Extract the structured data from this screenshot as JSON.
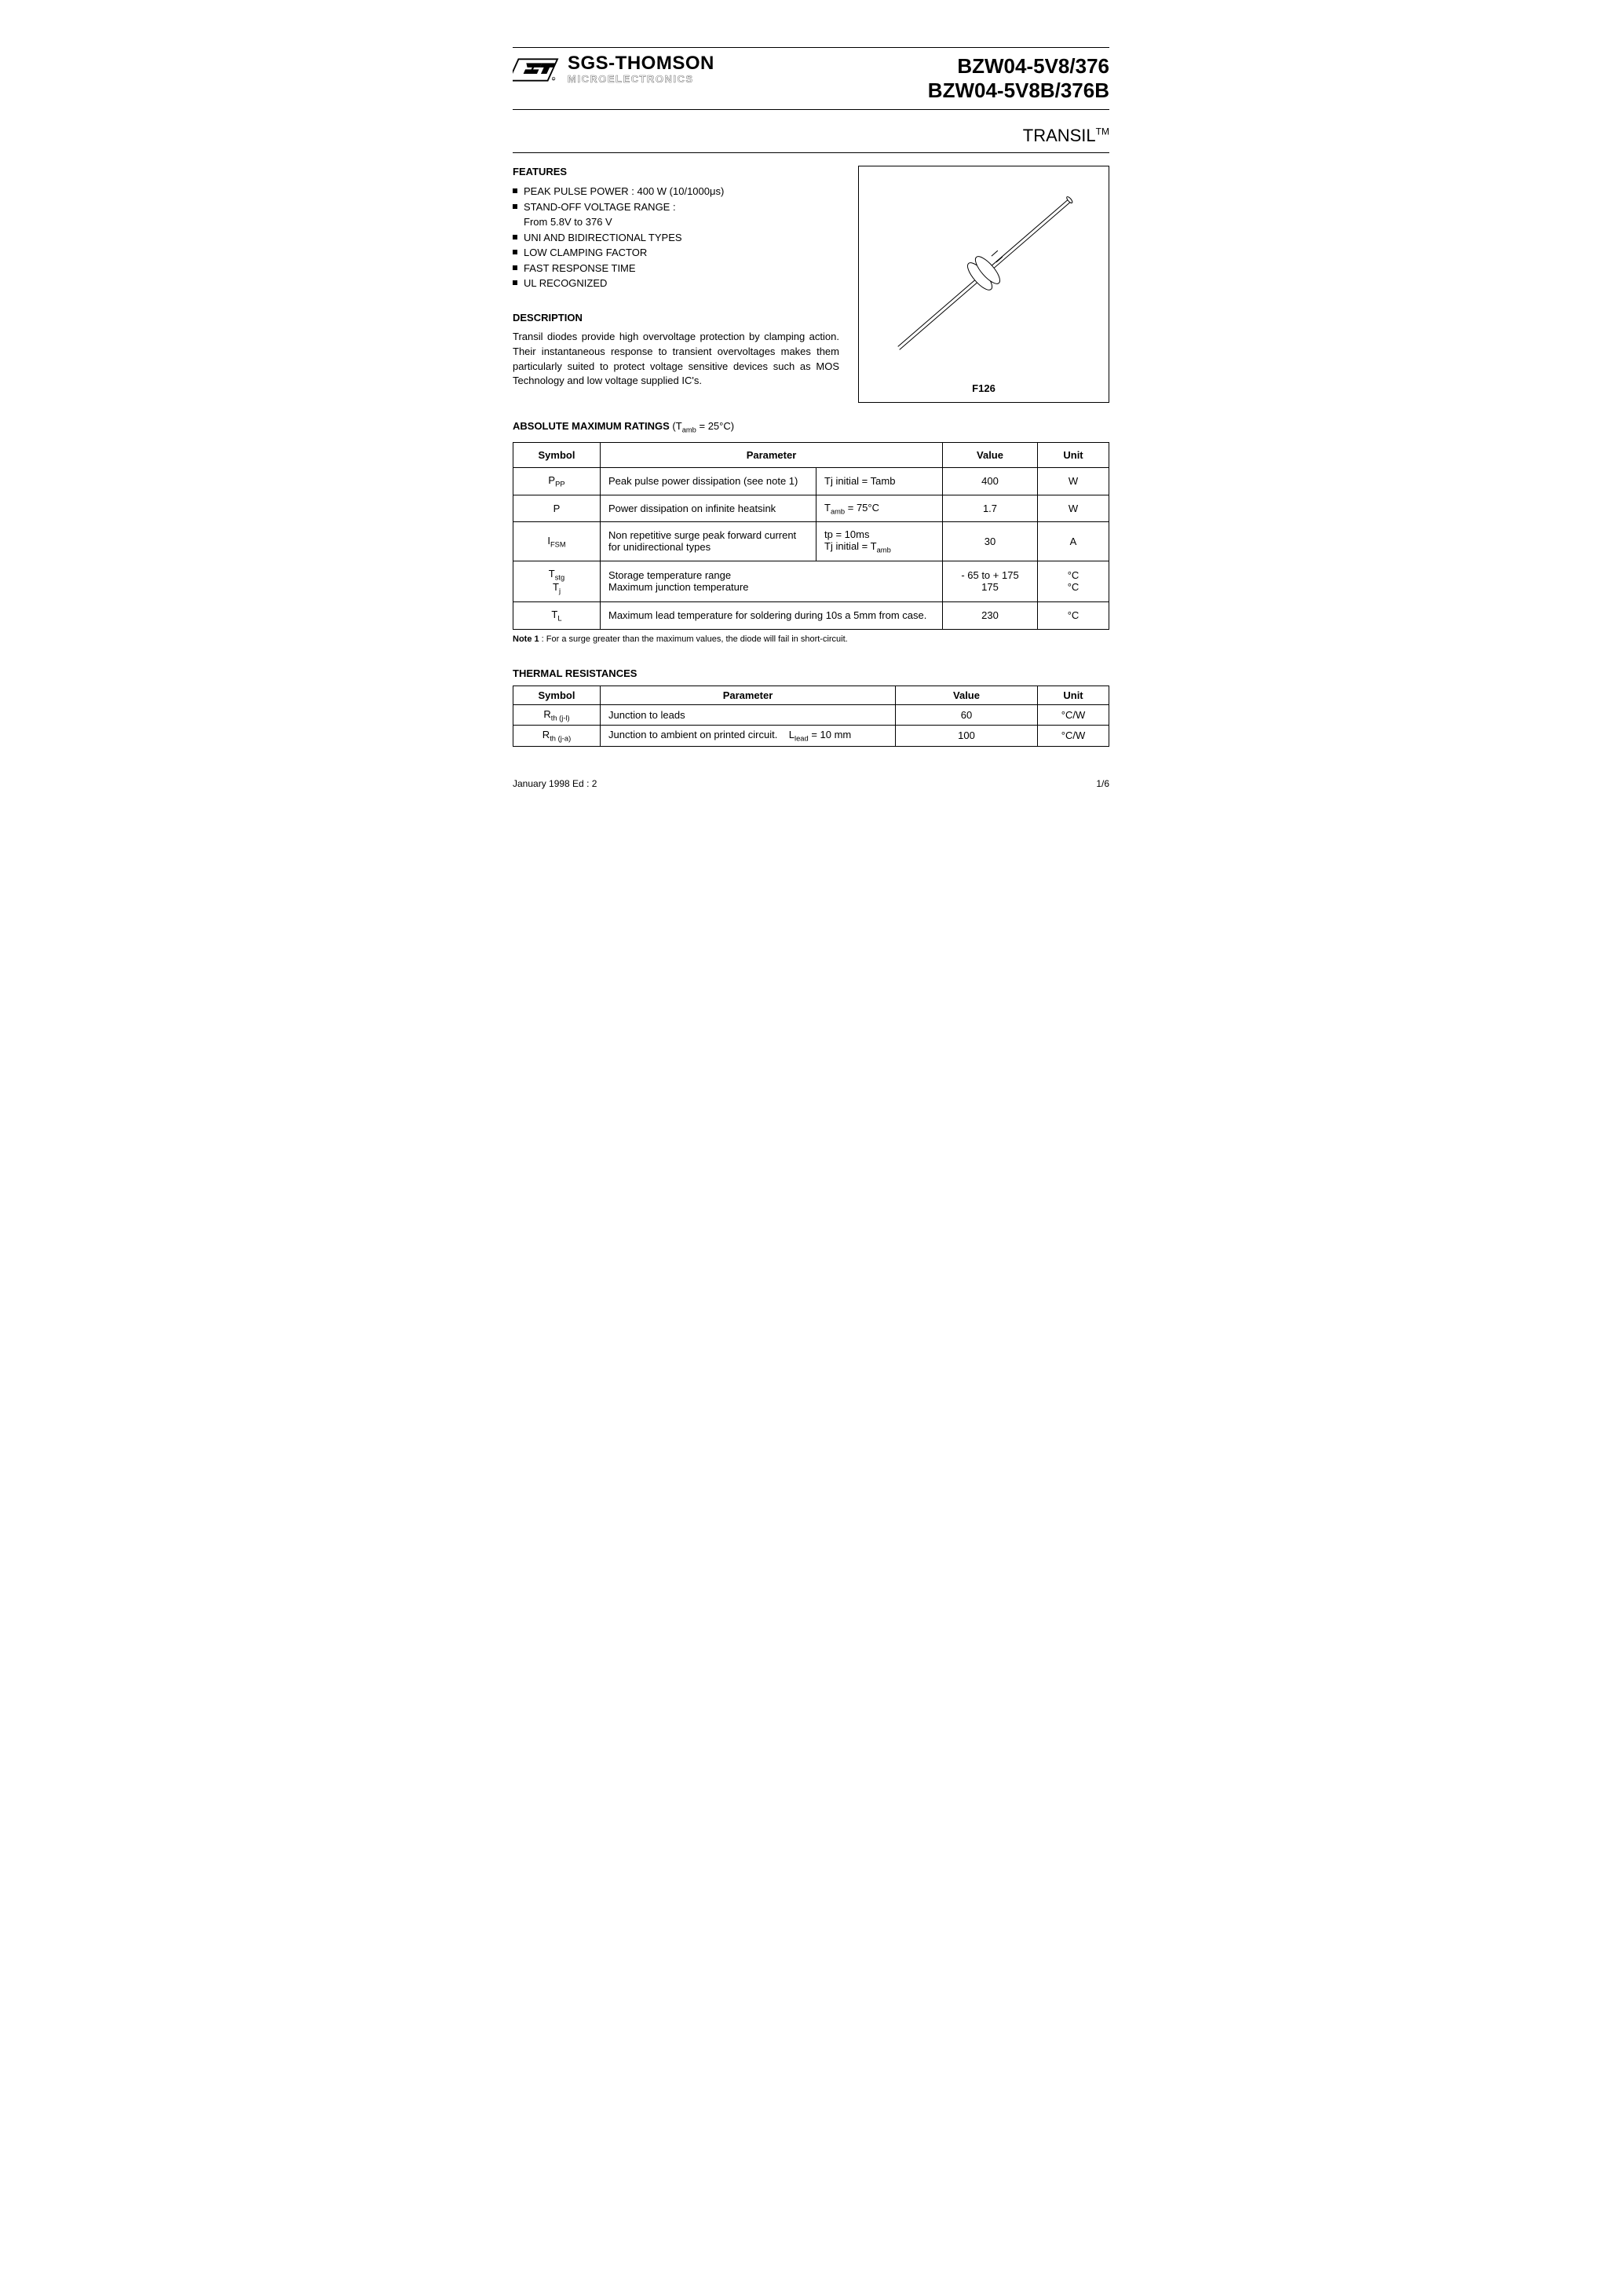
{
  "logo": {
    "company_line1": "SGS-THOMSON",
    "company_line2": "MICROELECTRONICS"
  },
  "part_numbers": {
    "line1": "BZW04-5V8/376",
    "line2": "BZW04-5V8B/376B"
  },
  "subtitle": {
    "main": "TRANSIL",
    "tm": "TM"
  },
  "features": {
    "heading": "FEATURES",
    "items": [
      "PEAK PULSE POWER : 400 W  (10/1000μs)",
      "STAND-OFF VOLTAGE RANGE :",
      "UNI AND BIDIRECTIONAL TYPES",
      "LOW CLAMPING FACTOR",
      "FAST RESPONSE TIME",
      "UL RECOGNIZED"
    ],
    "standoff_sub": "From 5.8V to 376 V"
  },
  "description": {
    "heading": "DESCRIPTION",
    "text": "Transil diodes provide high overvoltage protection by clamping action. Their instantaneous response to transient overvoltages makes them particularly suited to protect voltage sensitive devices such as MOS Technology and low voltage supplied IC's."
  },
  "package_label": "F126",
  "ratings": {
    "heading_bold": "ABSOLUTE MAXIMUM RATINGS",
    "heading_cond": " (Tamb = 25°C)",
    "columns": [
      "Symbol",
      "Parameter",
      "Value",
      "Unit"
    ],
    "rows": [
      {
        "symbol_html": "P<sub>PP</sub>",
        "param": "Peak pulse power dissipation (see note 1)",
        "cond": "Tj initial = Tamb",
        "value": "400",
        "unit": "W"
      },
      {
        "symbol_html": "P",
        "param": "Power dissipation on infinite heatsink",
        "cond_html": "T<sub>amb</sub> = 75°C",
        "value": "1.7",
        "unit": "W"
      },
      {
        "symbol_html": "I<sub>FSM</sub>",
        "param": "Non repetitive surge peak forward current for unidirectional types",
        "cond_html": "tp = 10ms<br>Tj initial = T<sub>amb</sub>",
        "value": "30",
        "unit": "A"
      },
      {
        "symbol_html": "T<sub>stg</sub><br>T<sub>j</sub>",
        "param": "Storage temperature range\nMaximum junction temperature",
        "value_html": "- 65 to + 175<br>175",
        "unit_html": "°C<br>°C"
      },
      {
        "symbol_html": "T<sub>L</sub>",
        "param": "Maximum lead temperature for soldering during 10s a 5mm from case.",
        "value": "230",
        "unit": "°C"
      }
    ],
    "note_label": "Note 1",
    "note_text": " : For a surge greater than the maximum values, the diode will fail in short-circuit."
  },
  "thermal": {
    "heading": "THERMAL RESISTANCES",
    "columns": [
      "Symbol",
      "Parameter",
      "Value",
      "Unit"
    ],
    "rows": [
      {
        "symbol_html": "R<sub>th (j-l)</sub>",
        "param": "Junction to leads",
        "cond": "",
        "value": "60",
        "unit": "°C/W"
      },
      {
        "symbol_html": "R<sub>th (j-a)</sub>",
        "param": "Junction to ambient on printed circuit.",
        "cond_html": "L<sub>lead</sub> = 10 mm",
        "value": "100",
        "unit": "°C/W"
      }
    ]
  },
  "footer": {
    "left": "January 1998  Ed : 2",
    "right": "1/6"
  },
  "colors": {
    "text": "#000000",
    "background": "#ffffff",
    "rule": "#000000"
  }
}
